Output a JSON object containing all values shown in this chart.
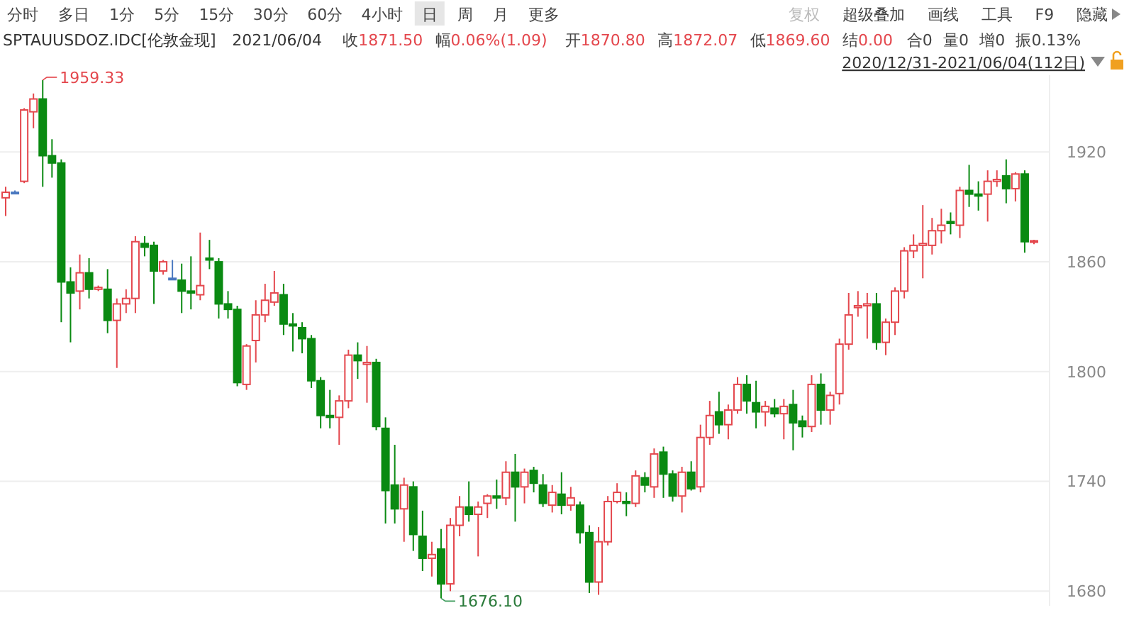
{
  "chart_data": {
    "type": "candlestick",
    "title": "SPTAUUSDOZ.IDC[伦敦金现]",
    "subtitle": "2021/06/04",
    "categories": [
      null,
      null,
      null,
      null,
      null,
      null,
      null,
      null,
      null,
      null,
      null,
      null,
      null,
      null,
      null,
      null,
      null,
      null,
      null,
      null,
      null,
      null,
      null,
      null,
      null,
      null,
      null,
      null,
      null,
      null,
      null,
      null,
      null,
      null,
      null,
      null,
      null,
      null,
      null,
      null,
      null,
      null,
      null,
      null,
      null,
      null,
      null,
      null,
      null,
      null,
      null,
      null,
      null,
      null,
      null,
      null,
      null,
      null,
      null,
      null,
      null,
      null,
      null,
      null,
      null,
      null,
      null,
      null,
      null,
      null,
      null,
      null,
      null,
      null,
      null,
      null,
      null,
      null,
      null,
      null,
      null,
      null,
      null,
      null,
      null,
      null,
      null,
      null,
      null,
      null,
      null,
      null,
      null,
      null,
      null,
      null,
      null,
      null,
      null,
      null,
      null,
      null,
      null,
      null,
      null,
      null,
      null,
      null,
      null,
      null,
      null,
      null
    ],
    "ohlc": [
      [
        1895,
        1901,
        1885,
        1898
      ],
      [
        1898,
        1899,
        1897,
        1898
      ],
      [
        1904,
        1944,
        1903,
        1943
      ],
      [
        1942,
        1952,
        1933,
        1949
      ],
      [
        1949,
        1959.33,
        1901,
        1918
      ],
      [
        1918,
        1927,
        1906,
        1914
      ],
      [
        1914,
        1916,
        1827,
        1849
      ],
      [
        1849,
        1857,
        1816,
        1843
      ],
      [
        1844,
        1864,
        1834,
        1854
      ],
      [
        1854,
        1862,
        1840,
        1845
      ],
      [
        1845,
        1847,
        1844,
        1846
      ],
      [
        1845,
        1856,
        1821,
        1828
      ],
      [
        1828,
        1840,
        1802,
        1837
      ],
      [
        1837,
        1845,
        1832,
        1840
      ],
      [
        1840,
        1874,
        1832,
        1871
      ],
      [
        1870,
        1874,
        1863,
        1868
      ],
      [
        1869,
        1871,
        1837,
        1855
      ],
      [
        1855,
        1861,
        1853,
        1860
      ],
      [
        1851,
        1861,
        1850,
        1851
      ],
      [
        1850,
        1859,
        1832,
        1844
      ],
      [
        1844,
        1863,
        1834,
        1843
      ],
      [
        1842,
        1876,
        1839,
        1847
      ],
      [
        1862,
        1872,
        1856,
        1861
      ],
      [
        1860,
        1862,
        1829,
        1837
      ],
      [
        1837,
        1844,
        1829,
        1834
      ],
      [
        1834,
        1836,
        1792,
        1794
      ],
      [
        1793,
        1815,
        1790,
        1814
      ],
      [
        1817,
        1839,
        1805,
        1831
      ],
      [
        1831,
        1848,
        1827,
        1839
      ],
      [
        1838,
        1855,
        1836,
        1843
      ],
      [
        1842,
        1848,
        1820,
        1826
      ],
      [
        1826,
        1832,
        1811,
        1825
      ],
      [
        1824,
        1827,
        1810,
        1818
      ],
      [
        1818,
        1820,
        1791,
        1795
      ],
      [
        1795,
        1797,
        1769,
        1776
      ],
      [
        1776,
        1790,
        1769,
        1775
      ],
      [
        1775,
        1787,
        1760,
        1784
      ],
      [
        1784,
        1812,
        1780,
        1809
      ],
      [
        1809,
        1816,
        1796,
        1806
      ],
      [
        1804,
        1814,
        1783,
        1805
      ],
      [
        1805,
        1807,
        1768,
        1770
      ],
      [
        1769,
        1775,
        1717,
        1735
      ],
      [
        1738,
        1760,
        1717,
        1725
      ],
      [
        1725,
        1742,
        1707,
        1738
      ],
      [
        1737,
        1740,
        1702,
        1711
      ],
      [
        1710,
        1724,
        1691,
        1698
      ],
      [
        1698,
        1707,
        1688,
        1700
      ],
      [
        1703,
        1714,
        1676.1,
        1684
      ],
      [
        1684,
        1720,
        1680,
        1716
      ],
      [
        1716,
        1732,
        1710,
        1726
      ],
      [
        1726,
        1740,
        1718,
        1722
      ],
      [
        1722,
        1729,
        1699,
        1726
      ],
      [
        1728,
        1733,
        1720,
        1732
      ],
      [
        1732,
        1741,
        1725,
        1731
      ],
      [
        1731,
        1751,
        1727,
        1745
      ],
      [
        1745,
        1755,
        1718,
        1737
      ],
      [
        1737,
        1747,
        1728,
        1745
      ],
      [
        1746,
        1748,
        1734,
        1739
      ],
      [
        1738,
        1744,
        1726,
        1728
      ],
      [
        1727,
        1738,
        1723,
        1734
      ],
      [
        1733,
        1745,
        1722,
        1727
      ],
      [
        1727,
        1737,
        1724,
        1731
      ],
      [
        1727,
        1729,
        1706,
        1712
      ],
      [
        1712,
        1716,
        1679,
        1685
      ],
      [
        1685,
        1715,
        1678,
        1707
      ],
      [
        1707,
        1732,
        1705,
        1729
      ],
      [
        1729,
        1739,
        1728,
        1734
      ],
      [
        1729,
        1734,
        1721,
        1728
      ],
      [
        1728,
        1746,
        1726,
        1743
      ],
      [
        1742,
        1745,
        1734,
        1738
      ],
      [
        1737,
        1758,
        1731,
        1755
      ],
      [
        1756,
        1759,
        1731,
        1744
      ],
      [
        1744,
        1746,
        1729,
        1732
      ],
      [
        1732,
        1748,
        1723,
        1745
      ],
      [
        1745,
        1751,
        1735,
        1736
      ],
      [
        1737,
        1771,
        1734,
        1764
      ],
      [
        1764,
        1784,
        1760,
        1776
      ],
      [
        1778,
        1789,
        1766,
        1771
      ],
      [
        1771,
        1782,
        1763,
        1779
      ],
      [
        1779,
        1797,
        1777,
        1793
      ],
      [
        1793,
        1798,
        1777,
        1784
      ],
      [
        1783,
        1795,
        1769,
        1778
      ],
      [
        1778,
        1784,
        1770,
        1781
      ],
      [
        1780,
        1785,
        1775,
        1777
      ],
      [
        1777,
        1785,
        1763,
        1781
      ],
      [
        1782,
        1790,
        1757,
        1772
      ],
      [
        1773,
        1776,
        1764,
        1770
      ],
      [
        1770,
        1798,
        1767,
        1793
      ],
      [
        1793,
        1799,
        1771,
        1779
      ],
      [
        1779,
        1789,
        1771,
        1787
      ],
      [
        1788,
        1818,
        1782,
        1815
      ],
      [
        1815,
        1843,
        1812,
        1831
      ],
      [
        1835,
        1844,
        1830,
        1836
      ],
      [
        1836,
        1843,
        1818,
        1837
      ],
      [
        1837,
        1843,
        1812,
        1816
      ],
      [
        1816,
        1829,
        1809,
        1827
      ],
      [
        1827,
        1846,
        1820,
        1844
      ],
      [
        1844,
        1868,
        1840,
        1866
      ],
      [
        1866,
        1875,
        1862,
        1869
      ],
      [
        1869,
        1891,
        1851,
        1870
      ],
      [
        1869,
        1884,
        1864,
        1877
      ],
      [
        1877,
        1889,
        1870,
        1880
      ],
      [
        1882,
        1887,
        1875,
        1881
      ],
      [
        1880,
        1901,
        1873,
        1899
      ],
      [
        1899,
        1913,
        1890,
        1897
      ],
      [
        1897,
        1904,
        1888,
        1896
      ],
      [
        1897,
        1910,
        1882,
        1904
      ],
      [
        1904,
        1910,
        1901,
        1905
      ],
      [
        1907,
        1916,
        1892,
        1900
      ],
      [
        1900,
        1909,
        1893,
        1908
      ],
      [
        1908,
        1910,
        1865,
        1871
      ],
      [
        1870.8,
        1872.07,
        1869.6,
        1871.5
      ]
    ],
    "ylim": [
      1672,
      1962
    ],
    "yticks": [
      1680,
      1740,
      1800,
      1860,
      1920
    ],
    "grid": "y",
    "tick_labels": "y",
    "annotations": [
      "1959.33",
      "1676.10",
      "分时",
      "多日",
      "1分",
      "5分",
      "15分",
      "30分",
      "60分",
      "4小时",
      "日",
      "周",
      "月",
      "更多",
      "复权",
      "超级叠加",
      "画线",
      "工具",
      "F9",
      "隐藏",
      "收1871.50",
      "幅0.06%(1.09)",
      "开1870.80",
      "高1872.07",
      "低1869.60",
      "结0.00",
      "合0",
      "量0",
      "增0",
      "振0.13%",
      "2020/12/31-2021/06/04(112日)"
    ]
  }
}
